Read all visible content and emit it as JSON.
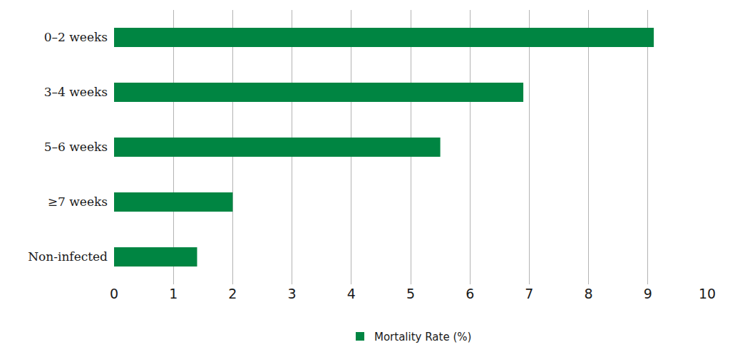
{
  "chart_data": {
    "type": "bar",
    "orientation": "horizontal",
    "categories": [
      "0–2 weeks",
      "3–4 weeks",
      "5–6 weeks",
      "≥7 weeks",
      "Non-infected"
    ],
    "series": [
      {
        "name": "Mortality Rate (%)",
        "color": "#008542",
        "values": [
          9.1,
          6.9,
          5.5,
          2.0,
          1.4
        ]
      }
    ],
    "xlim": [
      0,
      10
    ],
    "xticks": [
      0,
      1,
      2,
      3,
      4,
      5,
      6,
      7,
      8,
      9,
      10
    ],
    "grid": true,
    "legend": "bottom"
  }
}
